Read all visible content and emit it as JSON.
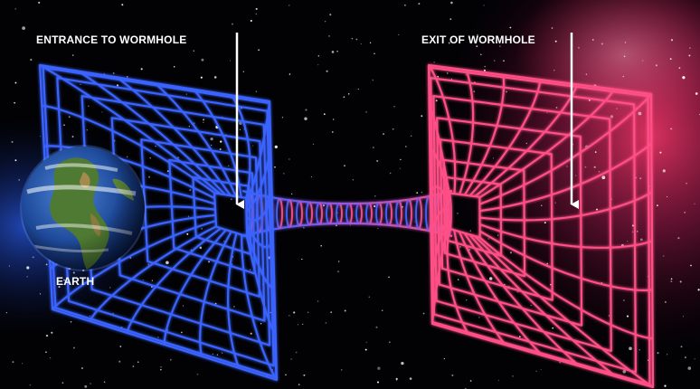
{
  "labels": {
    "entrance": "ENTRANCE TO WORMHOLE",
    "exit": "EXIT OF WORMHOLE",
    "earth": "EARTH"
  },
  "colors": {
    "background": "#020205",
    "entrance_grid": "#3a63ff",
    "exit_grid": "#ff4f86",
    "nebula_left": "#2a57d8",
    "nebula_right": "#e0306a",
    "arrow": "#ffffff",
    "label": "#ffffff"
  },
  "icons": {
    "earth": "earth-globe",
    "entrance_arrow": "down-arrow",
    "exit_arrow": "down-arrow"
  }
}
